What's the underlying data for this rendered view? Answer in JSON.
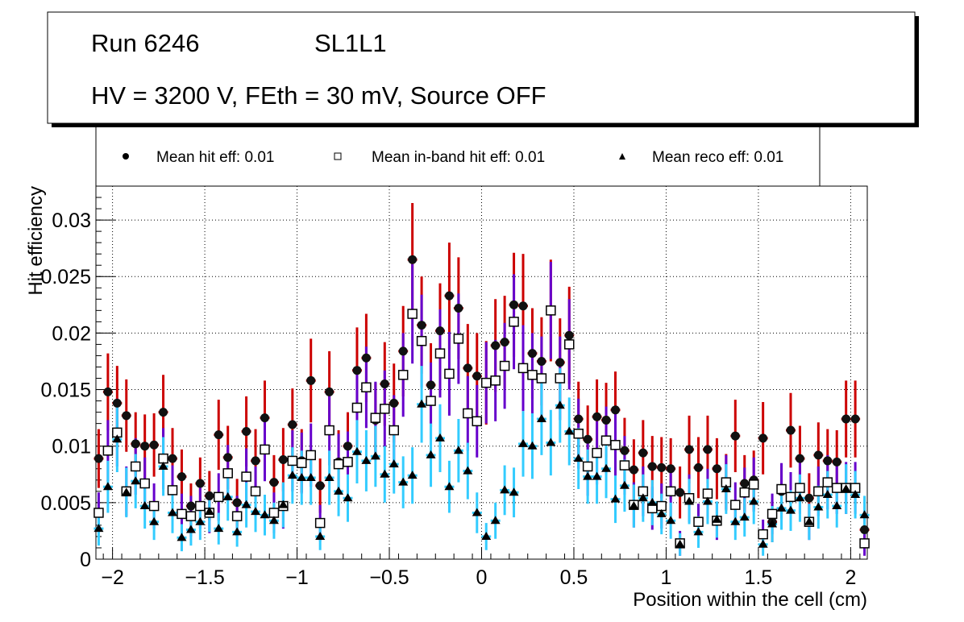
{
  "title_box": {
    "line1_left": "Run 6246",
    "line1_right": "SL1L1",
    "line2": "HV = 3200 V, FEth = 30 mV, Source OFF"
  },
  "legend": {
    "entries": [
      {
        "marker": "filled-circle",
        "label": "Mean hit  eff: 0.01"
      },
      {
        "marker": "open-square",
        "label": "Mean in-band hit eff: 0.01"
      },
      {
        "marker": "filled-triangle",
        "label": "Mean reco eff: 0.01"
      }
    ]
  },
  "chart_data": {
    "type": "scatter",
    "title": "Run 6246 SL1L1 — HV = 3200 V, FEth = 30 mV, Source OFF",
    "xlabel": "Position within the cell (cm)",
    "ylabel": "Hit efficiency",
    "xlim": [
      -2.09,
      2.09
    ],
    "ylim": [
      0,
      0.033
    ],
    "xticks": [
      -2,
      -1.5,
      -1,
      -0.5,
      0,
      0.5,
      1,
      1.5,
      2
    ],
    "xtick_labels": [
      "−2",
      "−1.5",
      "−1",
      "−0.5",
      "0",
      "0.5",
      "1",
      "1.5",
      "2"
    ],
    "yticks": [
      0,
      0.005,
      0.01,
      0.015,
      0.02,
      0.025,
      0.03
    ],
    "ytick_labels": [
      "0",
      "0.005",
      "0.01",
      "0.015",
      "0.02",
      "0.025",
      "0.03"
    ],
    "grid": true,
    "legend_position": "top",
    "x": [
      -2.075,
      -2.025,
      -1.975,
      -1.925,
      -1.875,
      -1.825,
      -1.775,
      -1.725,
      -1.675,
      -1.625,
      -1.575,
      -1.525,
      -1.475,
      -1.425,
      -1.375,
      -1.325,
      -1.275,
      -1.225,
      -1.175,
      -1.125,
      -1.075,
      -1.025,
      -0.975,
      -0.925,
      -0.875,
      -0.825,
      -0.775,
      -0.725,
      -0.675,
      -0.625,
      -0.575,
      -0.525,
      -0.475,
      -0.425,
      -0.375,
      -0.325,
      -0.275,
      -0.225,
      -0.175,
      -0.125,
      -0.075,
      -0.025,
      0.025,
      0.075,
      0.125,
      0.175,
      0.225,
      0.275,
      0.325,
      0.375,
      0.425,
      0.475,
      0.525,
      0.575,
      0.625,
      0.675,
      0.725,
      0.775,
      0.825,
      0.875,
      0.925,
      0.975,
      1.025,
      1.075,
      1.125,
      1.175,
      1.225,
      1.275,
      1.325,
      1.375,
      1.425,
      1.475,
      1.525,
      1.575,
      1.625,
      1.675,
      1.725,
      1.775,
      1.825,
      1.875,
      1.925,
      1.975,
      2.025,
      2.075
    ],
    "series": [
      {
        "name": "Mean hit  eff: 0.01",
        "marker": "filled-circle",
        "error_color": "#cc0000",
        "values": [
          0.0089,
          0.0148,
          0.0138,
          0.0127,
          0.0102,
          0.01,
          0.0101,
          0.013,
          0.0089,
          0.0073,
          0.0047,
          0.0067,
          0.0056,
          0.011,
          0.009,
          0.005,
          0.0113,
          0.0087,
          0.0125,
          0.0068,
          0.0088,
          0.0119,
          0.0087,
          0.0158,
          0.0065,
          0.0148,
          0.0086,
          0.01,
          0.0167,
          0.0178,
          0.0123,
          0.0155,
          0.0138,
          0.0184,
          0.0265,
          0.0207,
          0.0154,
          0.0202,
          0.0233,
          0.0222,
          0.0169,
          0.0162,
          0.0156,
          0.0189,
          0.0192,
          0.0225,
          0.0224,
          0.0182,
          0.0175,
          0.022,
          0.0174,
          0.0198,
          0.0124,
          0.0106,
          0.0126,
          0.0123,
          0.0132,
          0.0096,
          0.0079,
          0.0094,
          0.0082,
          0.0081,
          0.008,
          0.0059,
          0.0097,
          0.0081,
          0.0097,
          0.008,
          0.0068,
          0.0109,
          0.0067,
          0.007,
          0.0107,
          0.0033,
          0.006,
          0.0114,
          0.0089,
          0.0054,
          0.0092,
          0.0087,
          0.0086,
          0.0124,
          0.0124,
          0.0026
        ],
        "errors": [
          0.0026,
          0.0034,
          0.0033,
          0.0032,
          0.0028,
          0.0028,
          0.0028,
          0.0033,
          0.0027,
          0.0024,
          0.002,
          0.0023,
          0.0022,
          0.0031,
          0.0028,
          0.0021,
          0.0031,
          0.0028,
          0.0033,
          0.0024,
          0.0028,
          0.0032,
          0.0028,
          0.0037,
          0.0024,
          0.0036,
          0.0028,
          0.003,
          0.0038,
          0.0039,
          0.0033,
          0.0037,
          0.0035,
          0.004,
          0.005,
          0.0043,
          0.0037,
          0.0042,
          0.0047,
          0.0045,
          0.0039,
          0.0038,
          0.0037,
          0.0041,
          0.0041,
          0.0046,
          0.0046,
          0.004,
          0.0039,
          0.0045,
          0.0039,
          0.0043,
          0.0033,
          0.003,
          0.0033,
          0.0033,
          0.0034,
          0.0029,
          0.0027,
          0.0029,
          0.0027,
          0.0027,
          0.0027,
          0.0023,
          0.003,
          0.0027,
          0.003,
          0.0027,
          0.0025,
          0.0032,
          0.0025,
          0.0026,
          0.0032,
          0.0018,
          0.0024,
          0.0033,
          0.0029,
          0.0022,
          0.0029,
          0.0028,
          0.0028,
          0.0034,
          0.0034,
          0.0017
        ]
      },
      {
        "name": "Mean in-band hit eff: 0.01",
        "marker": "open-square",
        "error_color": "#6600cc",
        "values": [
          0.0041,
          0.0096,
          0.0112,
          0.006,
          0.0082,
          0.0067,
          0.0047,
          0.0089,
          0.0061,
          0.004,
          0.0038,
          0.0047,
          0.0041,
          0.0055,
          0.0076,
          0.0038,
          0.0073,
          0.006,
          0.0097,
          0.0041,
          0.0047,
          0.0087,
          0.0085,
          0.0092,
          0.0032,
          0.0114,
          0.0084,
          0.0086,
          0.0134,
          0.0152,
          0.0125,
          0.0133,
          0.0114,
          0.0163,
          0.0217,
          0.0193,
          0.014,
          0.0182,
          0.0164,
          0.0195,
          0.0129,
          0.0122,
          0.0156,
          0.0158,
          0.0171,
          0.021,
          0.0169,
          0.0163,
          0.016,
          0.022,
          0.016,
          0.019,
          0.0111,
          0.0082,
          0.0094,
          0.0105,
          0.0101,
          0.0083,
          0.0048,
          0.006,
          0.0045,
          0.0047,
          0.006,
          0.0014,
          0.0054,
          0.0033,
          0.0058,
          0.0034,
          0.0068,
          0.0048,
          0.0059,
          0.0066,
          0.0022,
          0.004,
          0.0062,
          0.0055,
          0.0063,
          0.0033,
          0.006,
          0.0068,
          0.0063,
          0.0063,
          0.0063,
          0.0014
        ],
        "errors": [
          0.0018,
          0.0027,
          0.003,
          0.0022,
          0.0025,
          0.0023,
          0.002,
          0.0027,
          0.0022,
          0.0018,
          0.0018,
          0.002,
          0.0018,
          0.0021,
          0.0025,
          0.0018,
          0.0025,
          0.0022,
          0.0028,
          0.0018,
          0.002,
          0.0027,
          0.0027,
          0.0028,
          0.0016,
          0.0031,
          0.0027,
          0.0027,
          0.0034,
          0.0036,
          0.0032,
          0.0034,
          0.0031,
          0.0037,
          0.0044,
          0.0041,
          0.0034,
          0.0039,
          0.0037,
          0.004,
          0.0033,
          0.0032,
          0.0036,
          0.0036,
          0.0038,
          0.0042,
          0.0038,
          0.0037,
          0.0037,
          0.0043,
          0.0037,
          0.004,
          0.0031,
          0.0026,
          0.0028,
          0.003,
          0.0029,
          0.0026,
          0.002,
          0.0022,
          0.0019,
          0.002,
          0.0022,
          0.0011,
          0.0021,
          0.0016,
          0.0022,
          0.0017,
          0.0024,
          0.002,
          0.0022,
          0.0024,
          0.0013,
          0.0018,
          0.0023,
          0.0022,
          0.0023,
          0.0016,
          0.0022,
          0.0024,
          0.0023,
          0.0023,
          0.0023,
          0.0011
        ]
      },
      {
        "name": "Mean reco eff: 0.01",
        "marker": "filled-triangle",
        "error_color": "#33ccff",
        "values": [
          0.0027,
          0.0064,
          0.0106,
          0.0059,
          0.0069,
          0.0047,
          0.0033,
          0.0082,
          0.0041,
          0.0019,
          0.0026,
          0.0033,
          0.0042,
          0.0027,
          0.0055,
          0.0024,
          0.0048,
          0.0042,
          0.0039,
          0.0034,
          0.0048,
          0.0074,
          0.0072,
          0.0072,
          0.002,
          0.0072,
          0.006,
          0.0054,
          0.0095,
          0.0087,
          0.0091,
          0.0075,
          0.0084,
          0.0068,
          0.0074,
          0.0137,
          0.0092,
          0.0107,
          0.0064,
          0.0096,
          0.0078,
          0.0041,
          0.002,
          0.0034,
          0.0061,
          0.0059,
          0.0102,
          0.01,
          0.0124,
          0.0103,
          0.0136,
          0.0113,
          0.0089,
          0.0073,
          0.0073,
          0.008,
          0.0053,
          0.0065,
          0.0047,
          0.0054,
          0.005,
          0.004,
          0.0034,
          0.0013,
          0.0051,
          0.0024,
          0.0051,
          0.0035,
          0.0062,
          0.0033,
          0.0037,
          0.0051,
          0.0013,
          0.0031,
          0.0045,
          0.0043,
          0.0054,
          0.0033,
          0.0046,
          0.0057,
          0.0047,
          0.0062,
          0.0057,
          0.0039
        ],
        "errors": [
          0.0015,
          0.0023,
          0.0029,
          0.0022,
          0.0024,
          0.002,
          0.0016,
          0.0026,
          0.0018,
          0.0012,
          0.0014,
          0.0016,
          0.0018,
          0.0014,
          0.0021,
          0.0013,
          0.002,
          0.0018,
          0.0018,
          0.0016,
          0.002,
          0.0025,
          0.0024,
          0.0024,
          0.0012,
          0.0024,
          0.0022,
          0.0021,
          0.0028,
          0.0027,
          0.0027,
          0.0025,
          0.0026,
          0.0023,
          0.0025,
          0.0034,
          0.0028,
          0.003,
          0.0023,
          0.0028,
          0.0025,
          0.0018,
          0.0012,
          0.0016,
          0.0022,
          0.0022,
          0.0029,
          0.0029,
          0.0032,
          0.0029,
          0.0033,
          0.003,
          0.0027,
          0.0024,
          0.0024,
          0.0026,
          0.0021,
          0.0023,
          0.0019,
          0.0021,
          0.002,
          0.0018,
          0.0016,
          0.001,
          0.002,
          0.0014,
          0.002,
          0.0016,
          0.0022,
          0.0016,
          0.0017,
          0.002,
          0.001,
          0.0016,
          0.0019,
          0.0018,
          0.0021,
          0.0016,
          0.0019,
          0.0021,
          0.0019,
          0.0022,
          0.0021,
          0.0017
        ]
      }
    ]
  }
}
